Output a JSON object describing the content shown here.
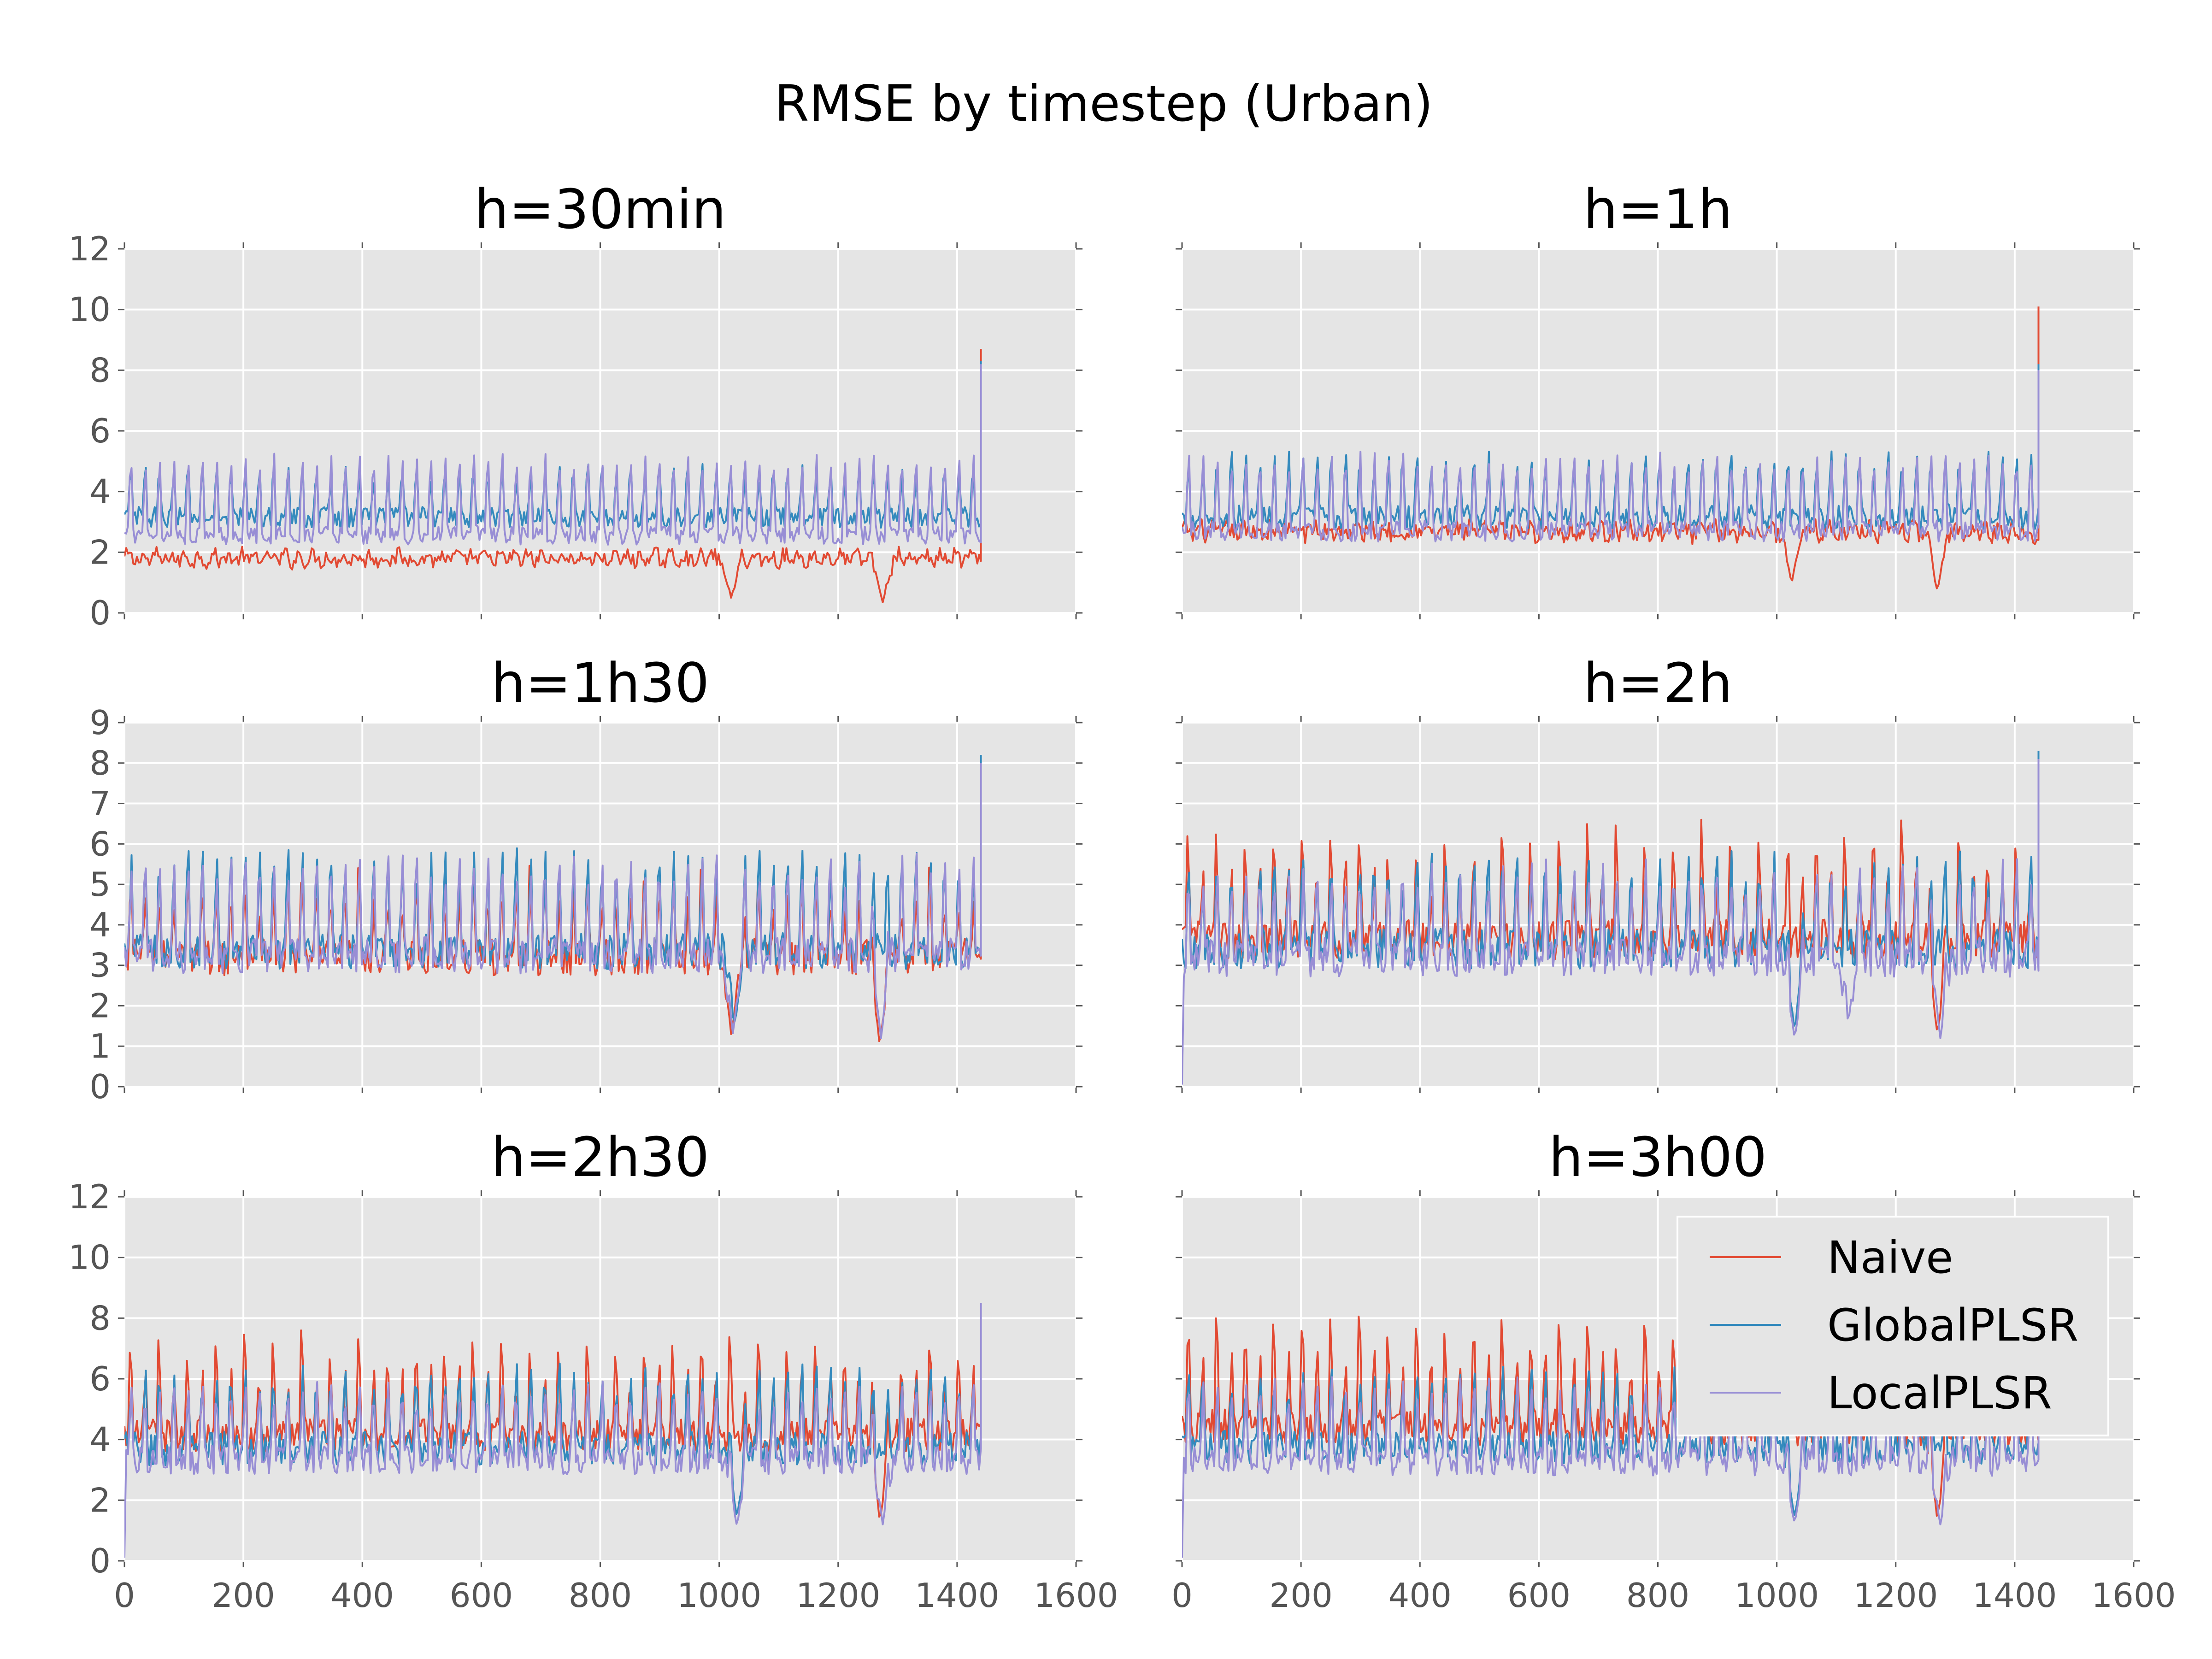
{
  "figure": {
    "title": "RMSE by timestep (Urban)"
  },
  "colors": {
    "Naive": "#e24a33",
    "GlobalPLSR": "#348abd",
    "LocalPLSR": "#988ed5",
    "axes_bg": "#e5e5e5",
    "grid": "#ffffff"
  },
  "legend": {
    "placement": "upper right of h=3h00 panel",
    "entries": [
      "Naive",
      "GlobalPLSR",
      "LocalPLSR"
    ]
  },
  "chart_data": [
    {
      "type": "line",
      "title": "h=30min",
      "xlim": [
        0,
        1600
      ],
      "ylim": [
        0,
        12
      ],
      "xticks": [
        "0",
        "200",
        "400",
        "600",
        "800",
        "1000",
        "1200",
        "1400",
        "1600"
      ],
      "yticks": [
        "0",
        "2",
        "4",
        "6",
        "8",
        "10",
        "12"
      ],
      "xtick_labels_shown": false,
      "x_range": [
        0,
        1440
      ],
      "series": [
        {
          "name": "Naive",
          "base": 1.8,
          "amp": 0.35,
          "noise": 0.25,
          "peaks": 0,
          "spike_every": 0,
          "spike_h": 0,
          "dips": [
            [
              1020,
              0.5
            ],
            [
              1275,
              0.35
            ]
          ],
          "end": 8.7
        },
        {
          "name": "GlobalPLSR",
          "base": 3.6,
          "amp": 0.9,
          "noise": 0.35,
          "peaks": 1,
          "spike_every": 0,
          "spike_h": 0,
          "dips": [],
          "end": 8.3
        },
        {
          "name": "LocalPLSR",
          "base": 3.3,
          "amp": 1.5,
          "noise": 0.3,
          "peaks": 1,
          "spike_every": 0,
          "spike_h": 0,
          "dips": [],
          "end": 8.2
        }
      ]
    },
    {
      "type": "line",
      "title": "h=1h",
      "xlim": [
        0,
        1600
      ],
      "ylim": [
        0,
        12
      ],
      "xticks": [
        "0",
        "200",
        "400",
        "600",
        "800",
        "1000",
        "1200",
        "1400",
        "1600"
      ],
      "yticks": [
        "0",
        "2",
        "4",
        "6",
        "8",
        "10",
        "12"
      ],
      "xtick_labels_shown": false,
      "x_range": [
        0,
        1440
      ],
      "series": [
        {
          "name": "Naive",
          "base": 2.7,
          "amp": 0.35,
          "noise": 0.3,
          "peaks": 0,
          "spike_every": 0,
          "spike_h": 0,
          "dips": [
            [
              1025,
              1.0
            ],
            [
              1270,
              0.7
            ]
          ],
          "end": 10.1
        },
        {
          "name": "GlobalPLSR",
          "base": 3.7,
          "amp": 1.1,
          "noise": 0.4,
          "peaks": 1,
          "spike_every": 0,
          "spike_h": 0,
          "dips": [],
          "end": 8.2
        },
        {
          "name": "LocalPLSR",
          "base": 3.4,
          "amp": 1.4,
          "noise": 0.35,
          "peaks": 1,
          "spike_every": 0,
          "spike_h": 0,
          "dips": [],
          "end": 8.0
        }
      ]
    },
    {
      "type": "line",
      "title": "h=1h30",
      "xlim": [
        0,
        1600
      ],
      "ylim": [
        0,
        9
      ],
      "xticks": [
        "0",
        "200",
        "400",
        "600",
        "800",
        "1000",
        "1200",
        "1400",
        "1600"
      ],
      "yticks": [
        "0",
        "1",
        "2",
        "3",
        "4",
        "5",
        "6",
        "7",
        "8",
        "9"
      ],
      "xtick_labels_shown": false,
      "x_range": [
        0,
        1440
      ],
      "series": [
        {
          "name": "Naive",
          "base": 3.6,
          "amp": 0.8,
          "noise": 0.45,
          "peaks": 1,
          "spike_every": 4,
          "spike_h": 2.4,
          "dips": [
            [
              1020,
              1.3
            ],
            [
              1270,
              1.0
            ]
          ],
          "end": 6.8
        },
        {
          "name": "GlobalPLSR",
          "base": 4.0,
          "amp": 1.3,
          "noise": 0.45,
          "peaks": 1,
          "spike_every": 0,
          "spike_h": 0,
          "dips": [
            [
              1025,
              1.5
            ]
          ],
          "end": 8.2
        },
        {
          "name": "LocalPLSR",
          "base": 3.9,
          "amp": 1.3,
          "noise": 0.45,
          "peaks": 1,
          "spike_every": 0,
          "spike_h": 0,
          "dips": [
            [
              1022,
              1.2
            ],
            [
              1272,
              1.2
            ]
          ],
          "end": 8.0
        }
      ]
    },
    {
      "type": "line",
      "title": "h=2h",
      "xlim": [
        0,
        1600
      ],
      "ylim": [
        0,
        9
      ],
      "xticks": [
        "0",
        "200",
        "400",
        "600",
        "800",
        "1000",
        "1200",
        "1400",
        "1600"
      ],
      "yticks": [
        "0",
        "1",
        "2",
        "3",
        "4",
        "5",
        "6",
        "7",
        "8",
        "9"
      ],
      "xtick_labels_shown": false,
      "x_range": [
        0,
        1440
      ],
      "series": [
        {
          "name": "Naive",
          "base": 4.1,
          "amp": 0.9,
          "noise": 0.5,
          "peaks": 1,
          "spike_every": 2,
          "spike_h": 3.5,
          "dips": [
            [
              1270,
              1.3
            ]
          ],
          "end": 6.2
        },
        {
          "name": "GlobalPLSR",
          "base": 4.0,
          "amp": 1.2,
          "noise": 0.5,
          "peaks": 1,
          "spike_every": 0,
          "spike_h": 0,
          "dips": [
            [
              1030,
              1.4
            ]
          ],
          "end": 8.3
        },
        {
          "name": "LocalPLSR",
          "base": 3.8,
          "amp": 1.2,
          "noise": 0.5,
          "peaks": 1,
          "spike_every": 0,
          "spike_h": 0,
          "dips": [
            [
              1030,
              1.2
            ],
            [
              1120,
              1.6
            ],
            [
              1275,
              1.2
            ]
          ],
          "start": 0.0,
          "end": 8.1
        }
      ]
    },
    {
      "type": "line",
      "title": "h=2h30",
      "xlim": [
        0,
        1600
      ],
      "ylim": [
        0,
        12
      ],
      "xticks": [
        "0",
        "200",
        "400",
        "600",
        "800",
        "1000",
        "1200",
        "1400",
        "1600"
      ],
      "yticks": [
        "0",
        "2",
        "4",
        "6",
        "8",
        "10",
        "12"
      ],
      "xtick_labels_shown": true,
      "x_range": [
        0,
        1440
      ],
      "series": [
        {
          "name": "Naive",
          "base": 4.7,
          "amp": 1.1,
          "noise": 0.55,
          "peaks": 1,
          "spike_every": 2,
          "spike_h": 4.2,
          "dips": [
            [
              1270,
              1.3
            ]
          ],
          "end": 8.5
        },
        {
          "name": "GlobalPLSR",
          "base": 4.4,
          "amp": 1.4,
          "noise": 0.55,
          "peaks": 1,
          "spike_every": 0,
          "spike_h": 0,
          "dips": [
            [
              1030,
              1.4
            ]
          ],
          "end": 8.4
        },
        {
          "name": "LocalPLSR",
          "base": 4.0,
          "amp": 1.3,
          "noise": 0.5,
          "peaks": 1,
          "spike_every": 0,
          "spike_h": 0,
          "dips": [
            [
              1030,
              1.1
            ],
            [
              1275,
              1.2
            ]
          ],
          "start": 0.1,
          "end": 8.5
        }
      ]
    },
    {
      "type": "line",
      "title": "h=3h00",
      "xlim": [
        0,
        1600
      ],
      "ylim": [
        0,
        12
      ],
      "xticks": [
        "0",
        "200",
        "400",
        "600",
        "800",
        "1000",
        "1200",
        "1400",
        "1600"
      ],
      "yticks": [
        "0",
        "2",
        "4",
        "6",
        "8",
        "10",
        "12"
      ],
      "xtick_labels_shown": true,
      "x_range": [
        0,
        1440
      ],
      "series": [
        {
          "name": "Naive",
          "base": 5.0,
          "amp": 1.2,
          "noise": 0.6,
          "peaks": 1,
          "spike_every": 2,
          "spike_h": 5.0,
          "dips": [
            [
              1270,
              1.3
            ]
          ],
          "end": 8.5
        },
        {
          "name": "GlobalPLSR",
          "base": 4.4,
          "amp": 1.3,
          "noise": 0.55,
          "peaks": 1,
          "spike_every": 0,
          "spike_h": 0,
          "dips": [
            [
              1030,
              1.4
            ]
          ],
          "end": 8.4
        },
        {
          "name": "LocalPLSR",
          "base": 4.0,
          "amp": 1.4,
          "noise": 0.5,
          "peaks": 1,
          "spike_every": 0,
          "spike_h": 0,
          "dips": [
            [
              1030,
              1.2
            ],
            [
              1275,
              1.2
            ]
          ],
          "start": 0.1,
          "end": 8.5
        }
      ]
    }
  ]
}
